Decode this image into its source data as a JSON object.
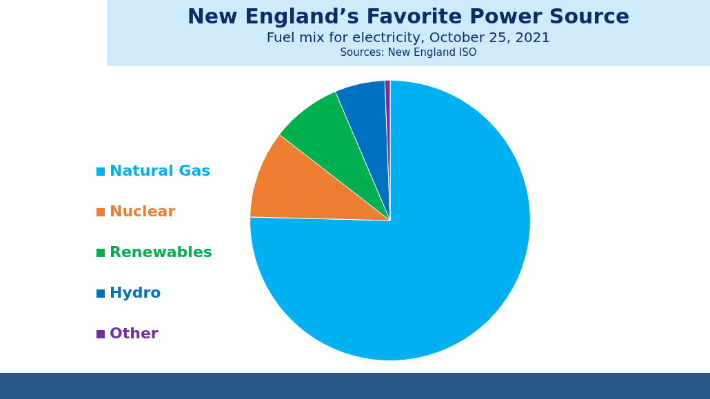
{
  "chart_data": {
    "type": "pie",
    "title": "New England’s Favorite Power Source",
    "subtitle": "Fuel mix for electricity, October 25, 2021",
    "annotations": [
      "Sources: New England ISO"
    ],
    "categories": [
      "Natural Gas",
      "Nuclear",
      "Renewables",
      "Hydro",
      "Other"
    ],
    "values": [
      75.4,
      10.1,
      8.1,
      5.8,
      0.6
    ],
    "colors": [
      "#00b0f0",
      "#ed7d31",
      "#00b050",
      "#0070c0",
      "#7030a0"
    ],
    "legend": "left"
  }
}
